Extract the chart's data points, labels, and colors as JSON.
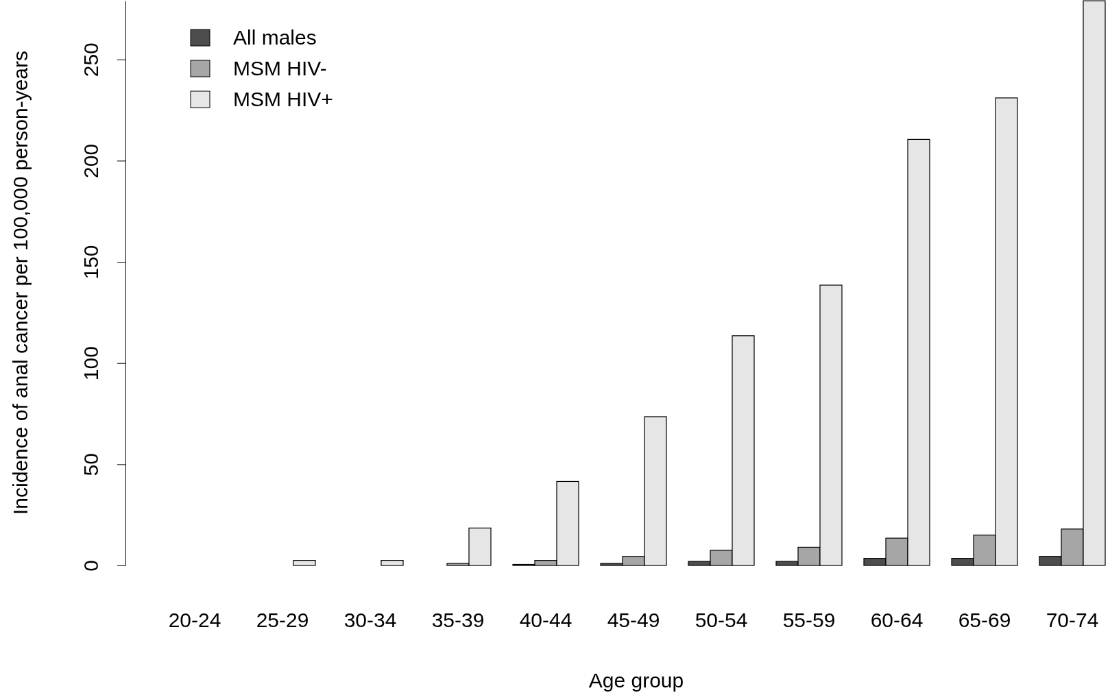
{
  "chart_data": {
    "type": "bar",
    "xlabel": "Age group",
    "ylabel": "Incidence of anal cancer per 100,000 person-years",
    "categories": [
      "20-24",
      "25-29",
      "30-34",
      "35-39",
      "40-44",
      "45-49",
      "50-54",
      "55-59",
      "60-64",
      "65-69",
      "70-74"
    ],
    "series": [
      {
        "name": "All males",
        "color": "#4d4d4d",
        "values": [
          0,
          0,
          0,
          0,
          0.5,
          1,
          2,
          2,
          3.5,
          3.5,
          4.5
        ]
      },
      {
        "name": "MSM HIV-",
        "color": "#a6a6a6",
        "values": [
          0,
          0,
          0,
          1,
          2.5,
          4.5,
          7.5,
          9,
          13.5,
          15,
          18
        ]
      },
      {
        "name": "MSM HIV+",
        "color": "#e6e6e6",
        "values": [
          0,
          2.5,
          2.5,
          18.5,
          41.5,
          73.5,
          113.5,
          138.5,
          210.5,
          231,
          279
        ]
      }
    ],
    "ylim": [
      0,
      279
    ],
    "yticks": [
      0,
      50,
      100,
      150,
      200,
      250
    ],
    "grid": false,
    "legend": "top left"
  }
}
